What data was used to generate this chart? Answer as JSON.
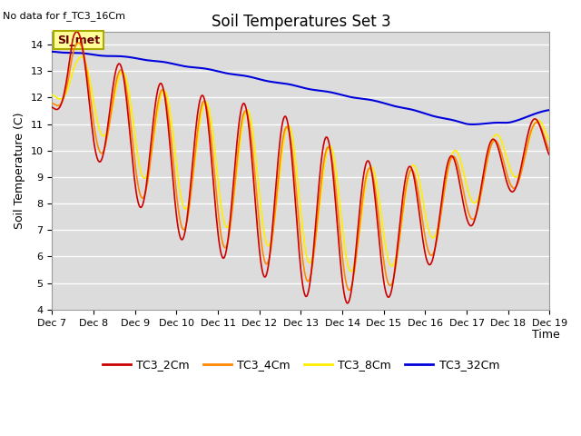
{
  "title": "Soil Temperatures Set 3",
  "no_data_label": "No data for f_TC3_16Cm",
  "si_met_label": "SI_met",
  "ylabel": "Soil Temperature (C)",
  "xlabel": "Time",
  "ylim": [
    4.0,
    14.5
  ],
  "yticks": [
    4.0,
    5.0,
    6.0,
    7.0,
    8.0,
    9.0,
    10.0,
    11.0,
    12.0,
    13.0,
    14.0
  ],
  "plot_bg_color": "#dcdcdc",
  "legend_entries": [
    "TC3_2Cm",
    "TC3_4Cm",
    "TC3_8Cm",
    "TC3_32Cm"
  ],
  "colors": {
    "TC3_2Cm": "#cc0000",
    "TC3_4Cm": "#ff8800",
    "TC3_8Cm": "#ffee00",
    "TC3_32Cm": "#0000dd"
  },
  "x_tick_labels": [
    "Dec 7",
    "Dec 8",
    "Dec 9",
    "Dec 10",
    "Dec 11",
    "Dec 12",
    "Dec 13",
    "Dec 14",
    "Dec 15",
    "Dec 16",
    "Dec 17",
    "Dec 18",
    "Dec 19"
  ],
  "x_tick_positions": [
    0,
    24,
    48,
    72,
    96,
    120,
    144,
    168,
    192,
    216,
    240,
    264,
    288
  ]
}
